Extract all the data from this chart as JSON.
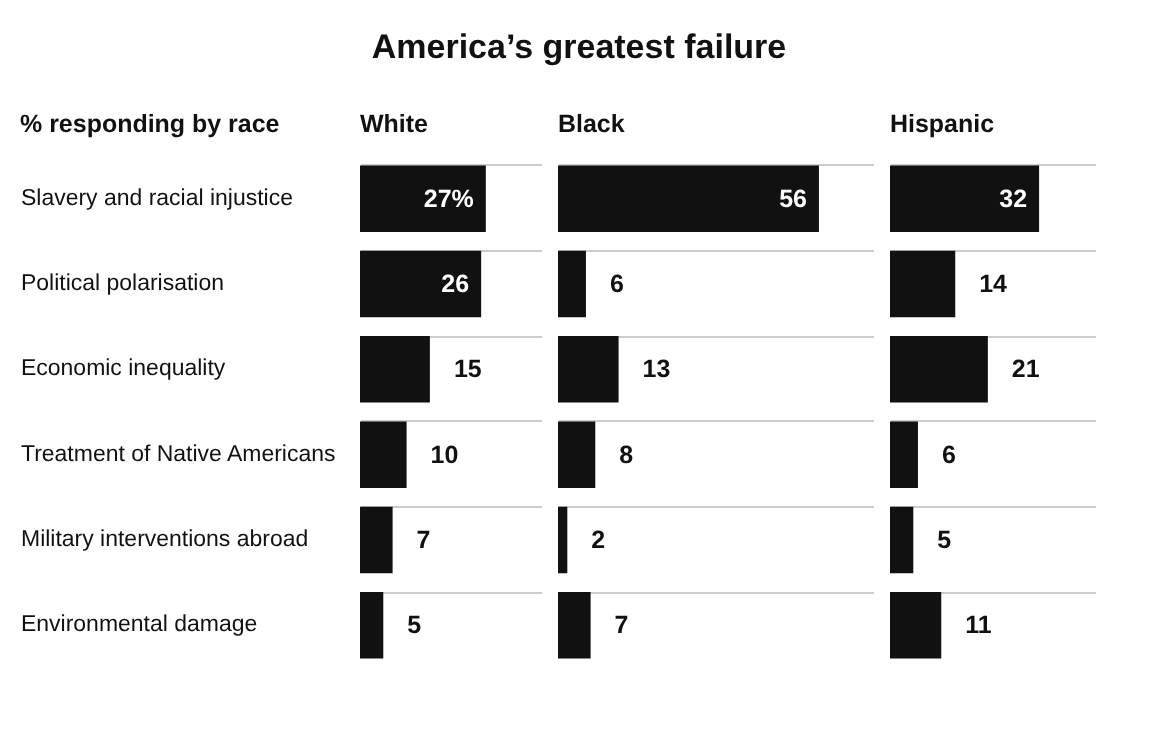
{
  "chart_data": [
    {
      "type": "bar",
      "orientation": "horizontal",
      "title": "America’s greatest failure",
      "ylabel": "% responding by race",
      "categories": [
        "Slavery and racial injustice",
        "Political polarisation",
        "Economic inequality",
        "Treatment of Native Americans",
        "Military interventions abroad",
        "Environmental damage"
      ],
      "series": [
        {
          "name": "White",
          "color": "#111111",
          "values": [
            27,
            26,
            15,
            10,
            7,
            5
          ],
          "value_labels": [
            "27%",
            "26",
            "15",
            "10",
            "7",
            "5"
          ]
        }
      ],
      "grid": "y",
      "tick_labels": "y",
      "legend": false
    },
    {
      "type": "bar",
      "orientation": "horizontal",
      "categories": [
        null,
        null,
        null,
        null,
        null,
        null
      ],
      "series": [
        {
          "name": "Black",
          "color": "#111111",
          "values": [
            56,
            6,
            13,
            8,
            2,
            7
          ]
        }
      ],
      "data_labels": true,
      "grid": "y",
      "tick_labels": false,
      "legend": false
    },
    {
      "type": "bar",
      "orientation": "horizontal",
      "categories": [
        null,
        null,
        null,
        null,
        null,
        null
      ],
      "series": [
        {
          "name": "Hispanic",
          "color": "#111111",
          "values": [
            32,
            14,
            21,
            6,
            5,
            11
          ]
        }
      ],
      "data_labels": true,
      "grid": "y",
      "tick_labels": false,
      "legend": false
    }
  ]
}
